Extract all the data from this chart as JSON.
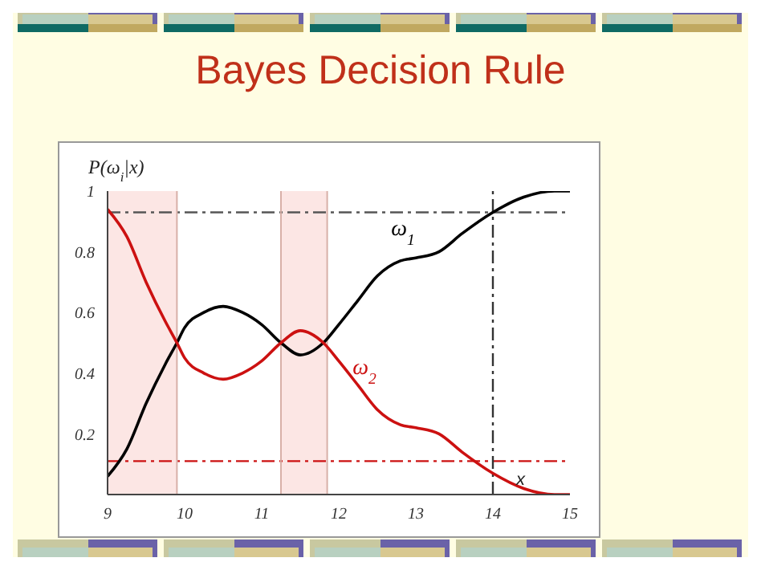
{
  "chart_data": {
    "type": "line",
    "title": "Bayes Decision Rule",
    "xlabel": "x",
    "ylabel": "P(ω$_{i}$|x)",
    "x": [
      9,
      9.25,
      9.5,
      9.75,
      9.9,
      10,
      10.25,
      10.5,
      10.75,
      11,
      11.25,
      11.5,
      11.8,
      12,
      12.25,
      12.5,
      12.8,
      13,
      13.3,
      13.6,
      14,
      14.4,
      14.8,
      15
    ],
    "series": [
      {
        "name": "ω$_{1}$",
        "color": "#000000",
        "values": [
          0.06,
          0.15,
          0.3,
          0.43,
          0.5,
          0.55,
          0.6,
          0.62,
          0.6,
          0.56,
          0.5,
          0.46,
          0.5,
          0.56,
          0.64,
          0.72,
          0.77,
          0.78,
          0.8,
          0.86,
          0.93,
          0.98,
          1.0,
          1.0
        ]
      },
      {
        "name": "ω$_{2}$",
        "color": "#cc1111",
        "values": [
          0.94,
          0.85,
          0.7,
          0.57,
          0.5,
          0.45,
          0.4,
          0.38,
          0.4,
          0.44,
          0.5,
          0.54,
          0.5,
          0.44,
          0.36,
          0.28,
          0.23,
          0.22,
          0.2,
          0.14,
          0.07,
          0.02,
          0.0,
          0.0
        ]
      }
    ],
    "xlim": [
      9,
      15
    ],
    "ylim": [
      0,
      1
    ],
    "xticks": [
      9,
      10,
      11,
      12,
      13,
      14,
      15
    ],
    "yticks": [
      0.2,
      0.4,
      0.6,
      0.8,
      1
    ],
    "ref_lines": [
      {
        "axis": "y",
        "value": 0.93,
        "color": "#555555",
        "line_style": "dashed"
      },
      {
        "axis": "y",
        "value": 0.11,
        "color": "#cc1111",
        "line_style": "dashed"
      },
      {
        "axis": "x",
        "value": 14,
        "color": "#333333",
        "line_style": "dashed"
      },
      {
        "axis": "x",
        "value": 9.9,
        "color": "#d8b0a8",
        "line_style": "solid"
      },
      {
        "axis": "x",
        "value": 11.25,
        "color": "#d8b0a8",
        "line_style": "solid"
      },
      {
        "axis": "x",
        "value": 11.85,
        "color": "#d8b0a8",
        "line_style": "solid"
      }
    ],
    "bands": [
      {
        "axis": "x",
        "from": 9,
        "to": 9.9,
        "color": "#e8321e"
      },
      {
        "axis": "x",
        "from": 11.25,
        "to": 11.85,
        "color": "#e8321e"
      }
    ],
    "marker": "none",
    "line_style": "solid"
  }
}
